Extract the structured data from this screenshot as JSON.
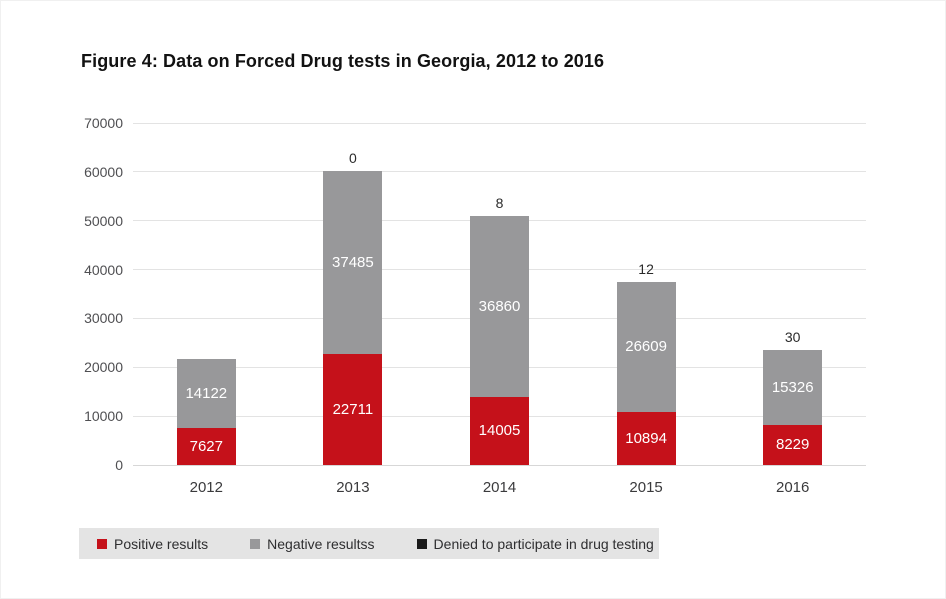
{
  "figure": {
    "title": "Figure 4: Data on Forced Drug tests in Georgia, 2012 to 2016"
  },
  "chart_data": {
    "type": "bar",
    "stacked": true,
    "title": "Figure 4: Data on Forced Drug tests in Georgia, 2012 to 2016",
    "categories": [
      "2012",
      "2013",
      "2014",
      "2015",
      "2016"
    ],
    "series": [
      {
        "name": "Positive results",
        "color": "#c5111a",
        "values": [
          7627,
          22711,
          14005,
          10894,
          8229
        ],
        "labels_inside_bar": true
      },
      {
        "name": "Negative resultss",
        "color": "#98989a",
        "values": [
          14122,
          37485,
          36860,
          26609,
          15326
        ],
        "labels_inside_bar": true
      },
      {
        "name": "Denied to participate in drug testing",
        "color": "#1a1a1a",
        "values": [
          null,
          0,
          8,
          12,
          30
        ],
        "labels_above_bar": true
      }
    ],
    "xlabel": "",
    "ylabel": "",
    "ylim": [
      0,
      70000
    ],
    "yticks": [
      0,
      10000,
      20000,
      30000,
      40000,
      50000,
      60000,
      70000
    ],
    "grid": true,
    "legend_position": "bottom"
  }
}
